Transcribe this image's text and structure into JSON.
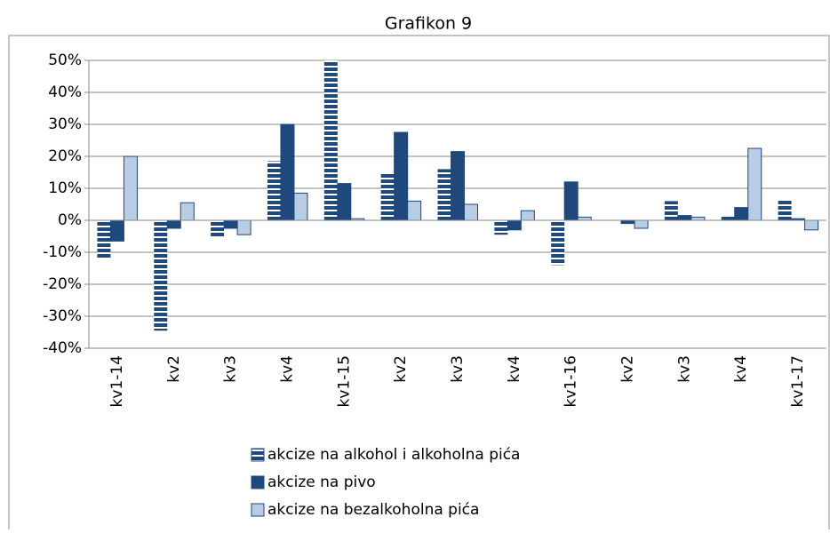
{
  "chart_data": {
    "type": "bar",
    "title": "Grafikon 9",
    "categories": [
      "kv1-14",
      "kv2",
      "kv3",
      "kv4",
      "kv1-15",
      "kv2",
      "kv3",
      "kv4",
      "kv1-16",
      "kv2",
      "kv3",
      "kv4",
      "kv1-17"
    ],
    "series": [
      {
        "name": "akcize na alkohol i alkoholna pića",
        "color": "#1f497d",
        "hatch": "horizontal",
        "values": [
          -12,
          -34.5,
          -5.5,
          18.5,
          50,
          15,
          16,
          -4.5,
          -14,
          -0.5,
          6,
          1.5,
          6.5
        ]
      },
      {
        "name": "akcize na pivo",
        "color": "#1f497d",
        "values": [
          -6.5,
          -2.5,
          -2.5,
          30,
          11.5,
          27.5,
          21.5,
          -3,
          12,
          -1,
          1.5,
          4,
          0.5
        ]
      },
      {
        "name": "akcize na bezalkoholna pića",
        "color": "#b8cce4",
        "values": [
          20,
          5.5,
          -4.5,
          8.5,
          0.5,
          6,
          5,
          3,
          1,
          -2.5,
          1,
          22.5,
          -3
        ]
      }
    ],
    "ylim": [
      -40,
      50
    ],
    "yticks": [
      {
        "value": -40,
        "label": "-40%"
      },
      {
        "value": -30,
        "label": "-30%"
      },
      {
        "value": -20,
        "label": "-20%"
      },
      {
        "value": -10,
        "label": "-10%"
      },
      {
        "value": 0,
        "label": "0%"
      },
      {
        "value": 10,
        "label": "10%"
      },
      {
        "value": 20,
        "label": "20%"
      },
      {
        "value": 30,
        "label": "30%"
      },
      {
        "value": 40,
        "label": "40%"
      },
      {
        "value": 50,
        "label": "50%"
      }
    ],
    "grid": true,
    "legend": "bottom"
  }
}
